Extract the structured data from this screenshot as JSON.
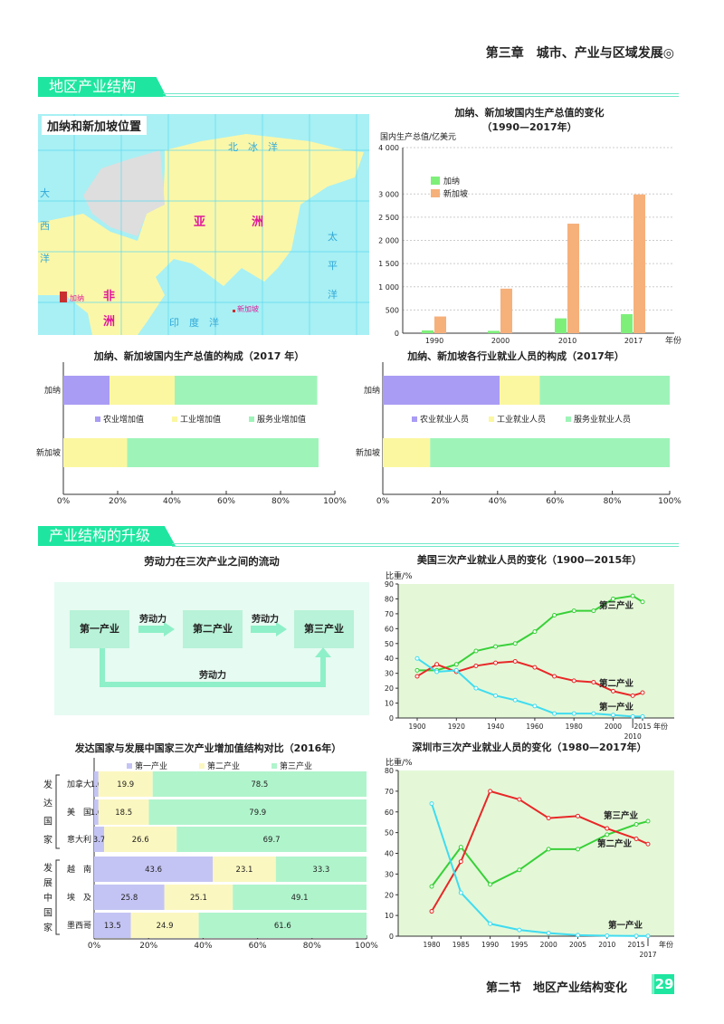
{
  "header": {
    "chapter": "第三章　城市、产业与区域发展◎"
  },
  "sections": [
    {
      "title": "地区产业结构"
    },
    {
      "title": "产业结构的升级"
    }
  ],
  "map": {
    "title": "加纳和新加坡位置",
    "labels": {
      "asia1": "亚",
      "asia2": "洲",
      "africa1": "非",
      "africa2": "洲",
      "arctic": "北　冰　洋",
      "pacific": "太　平　洋",
      "indian": "印　度　洋",
      "atlantic": "大　西　洋",
      "ghana": "加纳",
      "singapore": "新加坡"
    },
    "colors": {
      "ocean": "#a8f0f4",
      "land": "#fbf7a8",
      "europe": "#dedede",
      "grid": "#5fd8f0"
    }
  },
  "flow": {
    "title": "劳动力在三次产业之间的流动",
    "boxes": [
      "第一产业",
      "第二产业",
      "第三产业"
    ],
    "arrow_label": "劳动力"
  },
  "footer": {
    "section": "第二节　地区产业结构变化",
    "page": "29"
  },
  "chart_data": [
    {
      "type": "bar",
      "title": "加纳、新加坡国内生产总值的变化",
      "subtitle": "（1990—2017年）",
      "ylabel": "国内生产总值/亿美元",
      "xlabel": "年份",
      "ylim": [
        0,
        4000
      ],
      "yticks": [
        0,
        500,
        1000,
        1500,
        2000,
        2500,
        3000,
        4000
      ],
      "ytick_labels": [
        "0",
        "500",
        "1 000",
        "1 500",
        "2 000",
        "2 500",
        "3 000",
        "4 000"
      ],
      "categories": [
        "1990",
        "2000",
        "2010",
        "2017"
      ],
      "grid": true,
      "legend": "top-left",
      "series": [
        {
          "name": "加纳",
          "values": [
            60,
            50,
            320,
            410
          ],
          "color": "#7ef07a"
        },
        {
          "name": "新加坡",
          "values": [
            360,
            960,
            2360,
            2990
          ],
          "color": "#f6b07a"
        }
      ]
    },
    {
      "type": "bar",
      "orientation": "horizontal",
      "stacked": true,
      "title": "加纳、新加坡国内生产总值的构成（2017 年）",
      "categories": [
        "加纳",
        "新加坡"
      ],
      "xlim": [
        0,
        100
      ],
      "xtick_labels": [
        "0%",
        "20%",
        "40%",
        "60%",
        "80%",
        "100%"
      ],
      "legend": "middle",
      "series": [
        {
          "name": "农业增加值",
          "values": [
            17,
            0
          ],
          "color": "#a99cf4"
        },
        {
          "name": "工业增加值",
          "values": [
            24,
            23.5
          ],
          "color": "#fbf7a0"
        },
        {
          "name": "服务业增加值",
          "values": [
            52.5,
            70.5
          ],
          "color": "#9ef4b8"
        }
      ]
    },
    {
      "type": "bar",
      "orientation": "horizontal",
      "stacked": true,
      "title": "加纳、新加坡各行业就业人员的构成（2017年）",
      "categories": [
        "加纳",
        "新加坡"
      ],
      "xlim": [
        0,
        100
      ],
      "xtick_labels": [
        "0%",
        "20%",
        "40%",
        "60%",
        "80%",
        "100%"
      ],
      "legend": "middle",
      "series": [
        {
          "name": "农业就业人员",
          "values": [
            40.7,
            0
          ],
          "color": "#a99cf4"
        },
        {
          "name": "工业就业人员",
          "values": [
            14,
            16.5
          ],
          "color": "#fbf7a0"
        },
        {
          "name": "服务业就业人员",
          "values": [
            45.3,
            83.5
          ],
          "color": "#9ef4b8"
        }
      ]
    },
    {
      "type": "line",
      "title": "美国三次产业就业人员的变化（1900—2015年）",
      "ylabel": "比重/%",
      "xlabel": "年份",
      "ylim": [
        0,
        90
      ],
      "yticks": [
        0,
        10,
        20,
        30,
        40,
        50,
        60,
        70,
        80,
        90
      ],
      "x": [
        1900,
        1910,
        1920,
        1930,
        1940,
        1950,
        1960,
        1970,
        1980,
        1990,
        2000,
        2010,
        2015
      ],
      "xticks": [
        1900,
        1920,
        1940,
        1960,
        1980,
        2000,
        2010,
        2015
      ],
      "background": "#e4f8d8",
      "series": [
        {
          "name": "第三产业",
          "values": [
            32,
            32,
            36,
            45,
            48,
            50,
            58,
            69,
            72,
            72,
            80,
            82,
            78
          ],
          "color": "#38d038"
        },
        {
          "name": "第二产业",
          "values": [
            28,
            36,
            31,
            35,
            37,
            38,
            34,
            28,
            25,
            24,
            18,
            15,
            17
          ],
          "color": "#e82828"
        },
        {
          "name": "第一产业",
          "values": [
            40,
            31,
            32,
            20,
            15,
            12,
            8,
            3,
            3,
            3,
            2,
            1,
            1
          ],
          "color": "#40dcf0"
        }
      ]
    },
    {
      "type": "bar",
      "orientation": "horizontal",
      "stacked": true,
      "title": "发达国家与发展中国家三次产业增加值结构对比（2016年）",
      "categories": [
        "加拿大",
        "美　国",
        "意大利",
        "越　南",
        "埃　及",
        "墨西哥"
      ],
      "groups": [
        {
          "name": "发达国家",
          "rows": [
            0,
            1,
            2
          ]
        },
        {
          "name": "发展中国家",
          "rows": [
            3,
            4,
            5
          ]
        }
      ],
      "xlim": [
        0,
        100
      ],
      "xtick_labels": [
        "0%",
        "20%",
        "40%",
        "60%",
        "80%",
        "100%"
      ],
      "legend": "top",
      "series": [
        {
          "name": "第一产业",
          "values": [
            1.6,
            1.6,
            3.7,
            43.6,
            25.8,
            13.5
          ],
          "color": "#c4c4f4"
        },
        {
          "name": "第二产业",
          "values": [
            19.9,
            18.5,
            26.6,
            23.1,
            25.1,
            24.9
          ],
          "color": "#fbf7c0"
        },
        {
          "name": "第三产业",
          "values": [
            78.5,
            79.9,
            69.7,
            33.3,
            49.1,
            61.6
          ],
          "color": "#b0f4cc"
        }
      ]
    },
    {
      "type": "line",
      "title": "深圳市三次产业就业人员的变化（1980—2017年）",
      "ylabel": "比重/%",
      "xlabel": "年份",
      "ylim": [
        0,
        80
      ],
      "yticks": [
        0,
        10,
        20,
        30,
        40,
        50,
        60,
        70,
        80
      ],
      "x": [
        1980,
        1985,
        1990,
        1995,
        2000,
        2005,
        2010,
        2015,
        2017
      ],
      "xticks": [
        1980,
        1985,
        1990,
        1995,
        2000,
        2005,
        2010,
        2015,
        2017
      ],
      "background": "#e4f8d8",
      "series": [
        {
          "name": "第三产业",
          "values": [
            24,
            43,
            25,
            32,
            42,
            42,
            49,
            54,
            55.5
          ],
          "color": "#38d038"
        },
        {
          "name": "第二产业",
          "values": [
            12,
            36,
            70,
            66,
            57,
            58,
            52,
            47,
            44.5
          ],
          "color": "#e82828"
        },
        {
          "name": "第一产业",
          "values": [
            64,
            21,
            6,
            3,
            1.5,
            0.5,
            0.2,
            0.1,
            0.1
          ],
          "color": "#40dcf0"
        }
      ]
    }
  ]
}
